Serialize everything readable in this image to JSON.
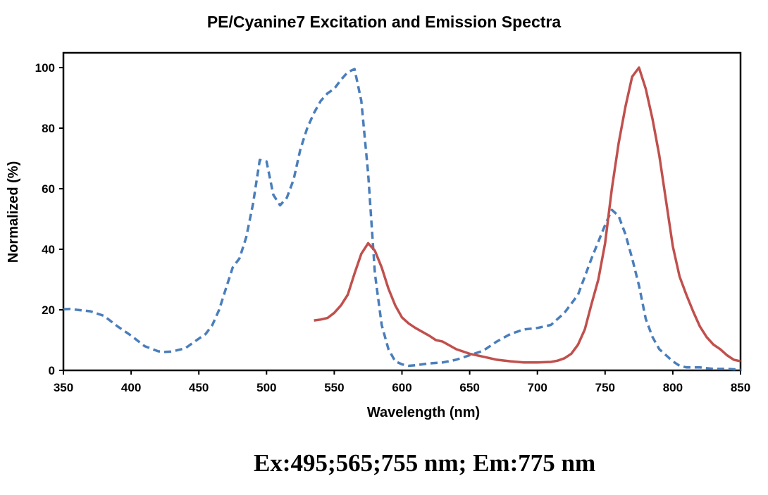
{
  "chart_data": {
    "type": "line",
    "title": "PE/Cyanine7 Excitation and Emission Spectra",
    "xlabel": "Wavelength (nm)",
    "ylabel": "Normalized (%)",
    "xlim": [
      350,
      850
    ],
    "ylim": [
      0,
      100
    ],
    "xticks": [
      350,
      400,
      450,
      500,
      550,
      600,
      650,
      700,
      750,
      800,
      850
    ],
    "yticks": [
      0,
      20,
      40,
      60,
      80,
      100
    ],
    "grid": false,
    "series": [
      {
        "style": "dashed",
        "color": "#4A7EBB",
        "x": [
          350,
          355,
          360,
          370,
          380,
          390,
          400,
          410,
          420,
          425,
          430,
          440,
          450,
          455,
          460,
          465,
          470,
          475,
          480,
          485,
          490,
          495,
          500,
          505,
          510,
          515,
          520,
          525,
          530,
          535,
          540,
          545,
          550,
          555,
          560,
          565,
          570,
          575,
          580,
          585,
          590,
          595,
          600,
          605,
          610,
          620,
          630,
          640,
          650,
          660,
          670,
          680,
          690,
          700,
          710,
          720,
          730,
          740,
          750,
          755,
          760,
          765,
          770,
          775,
          780,
          785,
          790,
          800,
          805,
          810,
          820,
          830,
          840,
          850
        ],
        "y": [
          20.2,
          20.3,
          20,
          19.5,
          18,
          14.5,
          11.5,
          8,
          6.3,
          6.1,
          6.2,
          7.3,
          10.5,
          12,
          15,
          20,
          27,
          34,
          37,
          44,
          55,
          69.5,
          69,
          58,
          54.5,
          57,
          63,
          73,
          80,
          85,
          89,
          91.5,
          93,
          96,
          98.5,
          99.5,
          89,
          65,
          32,
          15,
          7,
          3,
          2,
          1.5,
          1.7,
          2.3,
          2.6,
          3.5,
          5,
          6.5,
          9.5,
          12,
          13.5,
          14,
          15,
          19,
          25,
          37,
          48,
          53,
          51,
          45,
          37,
          28,
          17,
          11,
          7,
          3,
          1.5,
          1,
          1,
          0.5,
          0.5,
          0.2
        ]
      },
      {
        "style": "solid",
        "color": "#C0504D",
        "x": [
          535,
          540,
          545,
          550,
          555,
          560,
          565,
          570,
          575,
          580,
          585,
          590,
          595,
          600,
          605,
          610,
          620,
          625,
          630,
          640,
          650,
          660,
          670,
          680,
          690,
          700,
          710,
          715,
          720,
          725,
          730,
          735,
          740,
          745,
          750,
          755,
          760,
          765,
          770,
          775,
          780,
          785,
          790,
          795,
          800,
          805,
          810,
          815,
          820,
          825,
          830,
          835,
          840,
          845,
          850
        ],
        "y": [
          16.5,
          16.8,
          17.3,
          19,
          21.5,
          25,
          32,
          38.5,
          42,
          39.5,
          34,
          27,
          21.5,
          17.5,
          15.5,
          14,
          11.5,
          10,
          9.5,
          7,
          5.5,
          4.5,
          3.5,
          3,
          2.6,
          2.6,
          2.8,
          3.2,
          4,
          5.5,
          8.5,
          13.5,
          22,
          30,
          42,
          60,
          75,
          87,
          97,
          100,
          93,
          83,
          71,
          56,
          41,
          31,
          25,
          19.5,
          14.5,
          11,
          8.5,
          7,
          5,
          3.5,
          3
        ]
      }
    ],
    "annotation": "Ex:495;565;755 nm; Em:775 nm"
  }
}
